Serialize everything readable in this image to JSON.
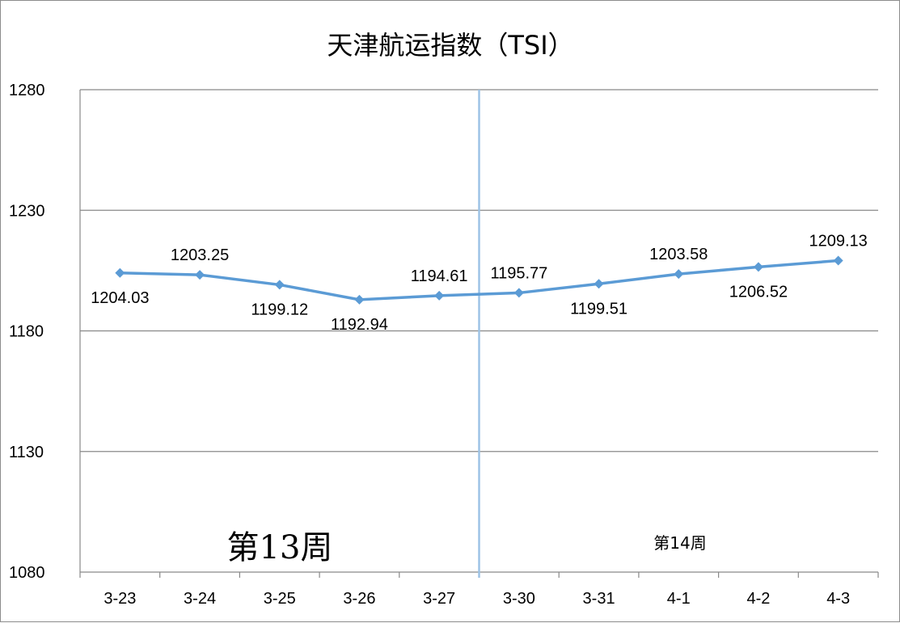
{
  "chart_data": {
    "type": "line",
    "title": "天津航运指数（TSI）",
    "xlabel": "",
    "ylabel": "",
    "categories": [
      "3-23",
      "3-24",
      "3-25",
      "3-26",
      "3-27",
      "3-30",
      "3-31",
      "4-1",
      "4-2",
      "4-3"
    ],
    "series": [
      {
        "values": [
          1204.03,
          1203.25,
          1199.12,
          1192.94,
          1194.61,
          1195.77,
          1199.51,
          1203.58,
          1206.52,
          1209.13
        ],
        "labels": [
          "1204.03",
          "1203.25",
          "1199.12",
          "1192.94",
          "1194.61",
          "1195.77",
          "1199.51",
          "1203.58",
          "1206.52",
          "1209.13"
        ]
      }
    ],
    "ylim": [
      1080,
      1280
    ],
    "yticks": [
      "1280",
      "1230",
      "1180",
      "1130",
      "1080"
    ],
    "grid": true,
    "legend": "none",
    "line_color": "#5b9bd5",
    "divider_color": "#9dc3e6",
    "week_labels": {
      "left": "第13周",
      "right": "第14周"
    }
  }
}
